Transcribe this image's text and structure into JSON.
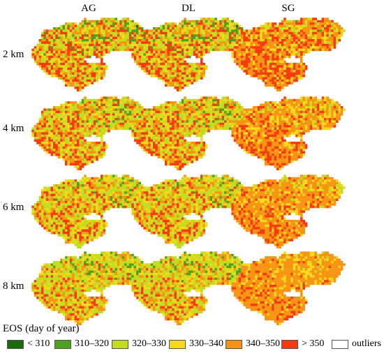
{
  "columns": [
    "AG",
    "DL",
    "SG"
  ],
  "rows": [
    "2 km",
    "4 km",
    "6 km",
    "8 km"
  ],
  "legend": {
    "title": "EOS (day of year)",
    "items": [
      {
        "label": "< 310",
        "color": "#1a6b0e"
      },
      {
        "label": "310–320",
        "color": "#4ca21c"
      },
      {
        "label": "320–330",
        "color": "#c4dc1e"
      },
      {
        "label": "330–340",
        "color": "#f7d91a"
      },
      {
        "label": "340–350",
        "color": "#f79513"
      },
      {
        "label": "> 350",
        "color": "#f53a0e"
      },
      {
        "label": "outliers",
        "color": "#ffffff"
      }
    ]
  },
  "maps": [
    {
      "row": "2 km",
      "method": "AG",
      "class_weights": [
        0.06,
        0.14,
        0.26,
        0.12,
        0.18,
        0.24
      ]
    },
    {
      "row": "2 km",
      "method": "DL",
      "class_weights": [
        0.06,
        0.14,
        0.26,
        0.12,
        0.18,
        0.24
      ]
    },
    {
      "row": "2 km",
      "method": "SG",
      "class_weights": [
        0.02,
        0.06,
        0.14,
        0.14,
        0.32,
        0.32
      ]
    },
    {
      "row": "4 km",
      "method": "AG",
      "class_weights": [
        0.05,
        0.12,
        0.3,
        0.13,
        0.2,
        0.2
      ]
    },
    {
      "row": "4 km",
      "method": "DL",
      "class_weights": [
        0.05,
        0.12,
        0.3,
        0.13,
        0.2,
        0.2
      ]
    },
    {
      "row": "4 km",
      "method": "SG",
      "class_weights": [
        0.01,
        0.04,
        0.14,
        0.16,
        0.4,
        0.25
      ]
    },
    {
      "row": "6 km",
      "method": "AG",
      "class_weights": [
        0.05,
        0.12,
        0.32,
        0.14,
        0.19,
        0.18
      ]
    },
    {
      "row": "6 km",
      "method": "DL",
      "class_weights": [
        0.05,
        0.12,
        0.32,
        0.14,
        0.19,
        0.18
      ]
    },
    {
      "row": "6 km",
      "method": "SG",
      "class_weights": [
        0.01,
        0.03,
        0.12,
        0.16,
        0.46,
        0.22
      ]
    },
    {
      "row": "8 km",
      "method": "AG",
      "class_weights": [
        0.05,
        0.13,
        0.34,
        0.14,
        0.2,
        0.14
      ]
    },
    {
      "row": "8 km",
      "method": "DL",
      "class_weights": [
        0.05,
        0.13,
        0.34,
        0.14,
        0.2,
        0.14
      ]
    },
    {
      "row": "8 km",
      "method": "SG",
      "class_weights": [
        0.01,
        0.02,
        0.1,
        0.18,
        0.54,
        0.15
      ]
    }
  ]
}
